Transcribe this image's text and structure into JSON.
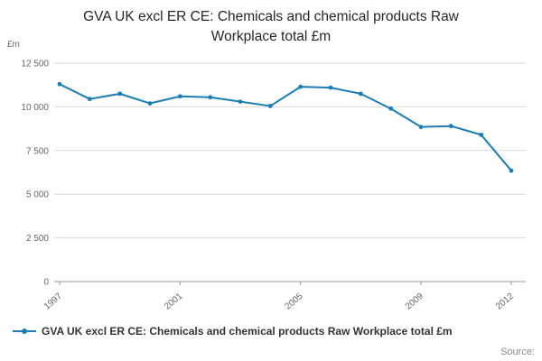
{
  "header": {
    "title": "GVA UK excl ER CE: Chemicals and chemical products Raw Workplace total £m"
  },
  "chart_data": {
    "type": "line",
    "title": "GVA UK excl ER CE: Chemicals and chemical products Raw Workplace total £m",
    "unit_label": "£m",
    "x": [
      1997,
      1998,
      1999,
      2000,
      2001,
      2002,
      2003,
      2004,
      2005,
      2006,
      2007,
      2008,
      2009,
      2010,
      2011,
      2012
    ],
    "values": [
      11300,
      10450,
      10750,
      10200,
      10600,
      10550,
      10300,
      10050,
      11150,
      11100,
      10750,
      9900,
      8850,
      8900,
      8400,
      6350
    ],
    "ylim": [
      0,
      12500
    ],
    "y_ticks": [
      {
        "value": 0,
        "label": "0"
      },
      {
        "value": 2500,
        "label": "2 500"
      },
      {
        "value": 5000,
        "label": "5 000"
      },
      {
        "value": 7500,
        "label": "7 500"
      },
      {
        "value": 10000,
        "label": "10 000"
      },
      {
        "value": 12500,
        "label": "12 500"
      }
    ],
    "x_ticks": [
      {
        "value": 1997,
        "label": "1997"
      },
      {
        "value": 2001,
        "label": "2001"
      },
      {
        "value": 2005,
        "label": "2005"
      },
      {
        "value": 2009,
        "label": "2009"
      },
      {
        "value": 2012,
        "label": "2012"
      }
    ],
    "line_color": "#1b7db6",
    "grid_color": "#d9d9d9",
    "axis_color": "#999999",
    "tick_label_color": "#666666",
    "grid": true,
    "legend_position": "bottom"
  },
  "legend": {
    "label": "GVA UK excl ER CE: Chemicals and chemical products Raw Workplace total £m"
  },
  "footer": {
    "source_label": "Source:"
  }
}
